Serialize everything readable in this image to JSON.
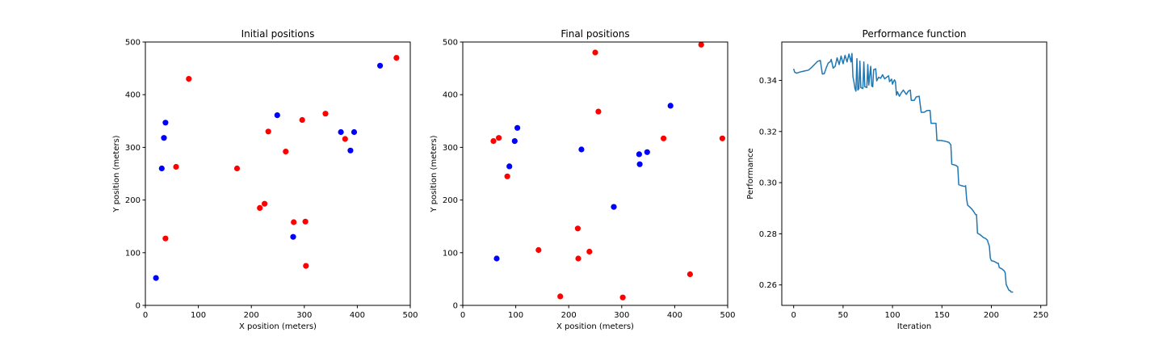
{
  "chart_data": [
    {
      "type": "scatter",
      "title": "Initial positions",
      "xlabel": "X position (meters)",
      "ylabel": "Y position (meters)",
      "xlim": [
        0,
        500
      ],
      "ylim": [
        0,
        500
      ],
      "xticks": [
        "0",
        "100",
        "200",
        "300",
        "400",
        "500"
      ],
      "yticks": [
        "0",
        "100",
        "200",
        "300",
        "400",
        "500"
      ],
      "grid": false,
      "series": [
        {
          "color": "#0000ff",
          "points": [
            [
              20,
              52
            ],
            [
              31,
              260
            ],
            [
              35,
              318
            ],
            [
              38,
              347
            ],
            [
              249,
              361
            ],
            [
              279,
              130
            ],
            [
              369,
              329
            ],
            [
              387,
              294
            ],
            [
              394,
              329
            ],
            [
              443,
              455
            ]
          ]
        },
        {
          "color": "#ff0000",
          "points": [
            [
              38,
              127
            ],
            [
              58,
              263
            ],
            [
              82,
              430
            ],
            [
              173,
              260
            ],
            [
              216,
              185
            ],
            [
              225,
              193
            ],
            [
              232,
              330
            ],
            [
              265,
              292
            ],
            [
              280,
              158
            ],
            [
              296,
              352
            ],
            [
              302,
              159
            ],
            [
              303,
              75
            ],
            [
              340,
              364
            ],
            [
              377,
              316
            ],
            [
              474,
              470
            ]
          ]
        }
      ]
    },
    {
      "type": "scatter",
      "title": "Final positions",
      "xlabel": "X position (meters)",
      "ylabel": "Y position (meters)",
      "xlim": [
        0,
        500
      ],
      "ylim": [
        0,
        500
      ],
      "xticks": [
        "0",
        "100",
        "200",
        "300",
        "400",
        "500"
      ],
      "yticks": [
        "0",
        "100",
        "200",
        "300",
        "400",
        "500"
      ],
      "grid": false,
      "series": [
        {
          "color": "#0000ff",
          "points": [
            [
              64,
              89
            ],
            [
              88,
              264
            ],
            [
              98,
              312
            ],
            [
              103,
              337
            ],
            [
              224,
              296
            ],
            [
              285,
              187
            ],
            [
              333,
              287
            ],
            [
              334,
              268
            ],
            [
              348,
              291
            ],
            [
              392,
              379
            ]
          ]
        },
        {
          "color": "#ff0000",
          "points": [
            [
              58,
              312
            ],
            [
              68,
              318
            ],
            [
              84,
              245
            ],
            [
              143,
              105
            ],
            [
              184,
              17
            ],
            [
              217,
              146
            ],
            [
              218,
              89
            ],
            [
              239,
              102
            ],
            [
              250,
              480
            ],
            [
              256,
              368
            ],
            [
              302,
              15
            ],
            [
              379,
              317
            ],
            [
              429,
              59
            ],
            [
              450,
              495
            ],
            [
              490,
              317
            ]
          ]
        }
      ]
    },
    {
      "type": "line",
      "title": "Performance function",
      "xlabel": "Iteration",
      "ylabel": "Performance",
      "xlim": [
        -12,
        256
      ],
      "ylim": [
        0.252,
        0.355
      ],
      "xticks": [
        0,
        50,
        100,
        150,
        200,
        250
      ],
      "yticks": [
        0.26,
        0.28,
        0.3,
        0.32,
        0.34
      ],
      "ytick_labels": [
        "0.26",
        "0.28",
        "0.30",
        "0.32",
        "0.34"
      ],
      "grid": false,
      "line_color": "#1f77b4",
      "series": [
        {
          "points": [
            [
              0,
              0.3445
            ],
            [
              1,
              0.3432
            ],
            [
              3,
              0.3428
            ],
            [
              6,
              0.3432
            ],
            [
              10,
              0.3436
            ],
            [
              15,
              0.344
            ],
            [
              18,
              0.345
            ],
            [
              21,
              0.3462
            ],
            [
              24,
              0.3474
            ],
            [
              27,
              0.3478
            ],
            [
              29,
              0.3425
            ],
            [
              31,
              0.3426
            ],
            [
              33,
              0.345
            ],
            [
              35,
              0.3468
            ],
            [
              37,
              0.3473
            ],
            [
              38,
              0.3482
            ],
            [
              40,
              0.3448
            ],
            [
              42,
              0.3455
            ],
            [
              44,
              0.3488
            ],
            [
              46,
              0.3462
            ],
            [
              48,
              0.3495
            ],
            [
              50,
              0.3465
            ],
            [
              52,
              0.3498
            ],
            [
              54,
              0.3472
            ],
            [
              56,
              0.3503
            ],
            [
              58,
              0.3472
            ],
            [
              59,
              0.3505
            ],
            [
              60,
              0.3414
            ],
            [
              61,
              0.3395
            ],
            [
              62,
              0.3368
            ],
            [
              63,
              0.3358
            ],
            [
              64,
              0.3485
            ],
            [
              65,
              0.3362
            ],
            [
              66,
              0.3368
            ],
            [
              67,
              0.3475
            ],
            [
              68,
              0.3372
            ],
            [
              70,
              0.3368
            ],
            [
              71,
              0.3472
            ],
            [
              72,
              0.3375
            ],
            [
              74,
              0.3372
            ],
            [
              75,
              0.3462
            ],
            [
              76,
              0.3382
            ],
            [
              78,
              0.3455
            ],
            [
              79,
              0.3378
            ],
            [
              80,
              0.3375
            ],
            [
              81,
              0.3442
            ],
            [
              83,
              0.3445
            ],
            [
              84,
              0.3398
            ],
            [
              86,
              0.3412
            ],
            [
              88,
              0.3408
            ],
            [
              90,
              0.3422
            ],
            [
              92,
              0.3406
            ],
            [
              94,
              0.3412
            ],
            [
              96,
              0.3418
            ],
            [
              97,
              0.3395
            ],
            [
              99,
              0.3405
            ],
            [
              100,
              0.3385
            ],
            [
              101,
              0.3395
            ],
            [
              102,
              0.3402
            ],
            [
              103,
              0.3395
            ],
            [
              104,
              0.3342
            ],
            [
              105,
              0.3355
            ],
            [
              107,
              0.3338
            ],
            [
              109,
              0.3352
            ],
            [
              111,
              0.3362
            ],
            [
              114,
              0.3345
            ],
            [
              116,
              0.3358
            ],
            [
              118,
              0.3362
            ],
            [
              119,
              0.3322
            ],
            [
              122,
              0.3322
            ],
            [
              124,
              0.3335
            ],
            [
              127,
              0.3338
            ],
            [
              129,
              0.3275
            ],
            [
              132,
              0.3275
            ],
            [
              135,
              0.3282
            ],
            [
              138,
              0.3282
            ],
            [
              139,
              0.3232
            ],
            [
              142,
              0.3232
            ],
            [
              144,
              0.3232
            ],
            [
              145,
              0.3165
            ],
            [
              149,
              0.3165
            ],
            [
              153,
              0.3162
            ],
            [
              157,
              0.3158
            ],
            [
              159,
              0.3148
            ],
            [
              160,
              0.3072
            ],
            [
              164,
              0.3068
            ],
            [
              166,
              0.3062
            ],
            [
              167,
              0.2992
            ],
            [
              170,
              0.2988
            ],
            [
              173,
              0.2985
            ],
            [
              174,
              0.2988
            ],
            [
              175,
              0.2935
            ],
            [
              176,
              0.2912
            ],
            [
              178,
              0.2905
            ],
            [
              180,
              0.2898
            ],
            [
              182,
              0.2888
            ],
            [
              184,
              0.2875
            ],
            [
              185,
              0.2875
            ],
            [
              186,
              0.2802
            ],
            [
              188,
              0.2798
            ],
            [
              190,
              0.2792
            ],
            [
              192,
              0.2785
            ],
            [
              194,
              0.2782
            ],
            [
              196,
              0.2775
            ],
            [
              197,
              0.2762
            ],
            [
              198,
              0.2752
            ],
            [
              199,
              0.2705
            ],
            [
              200,
              0.2695
            ],
            [
              203,
              0.2692
            ],
            [
              206,
              0.2685
            ],
            [
              207,
              0.2685
            ],
            [
              208,
              0.2668
            ],
            [
              211,
              0.2662
            ],
            [
              213,
              0.2655
            ],
            [
              214,
              0.2648
            ],
            [
              215,
              0.2602
            ],
            [
              217,
              0.2585
            ],
            [
              218,
              0.2578
            ],
            [
              219,
              0.2578
            ],
            [
              220,
              0.2572
            ],
            [
              222,
              0.2572
            ]
          ]
        }
      ]
    }
  ]
}
